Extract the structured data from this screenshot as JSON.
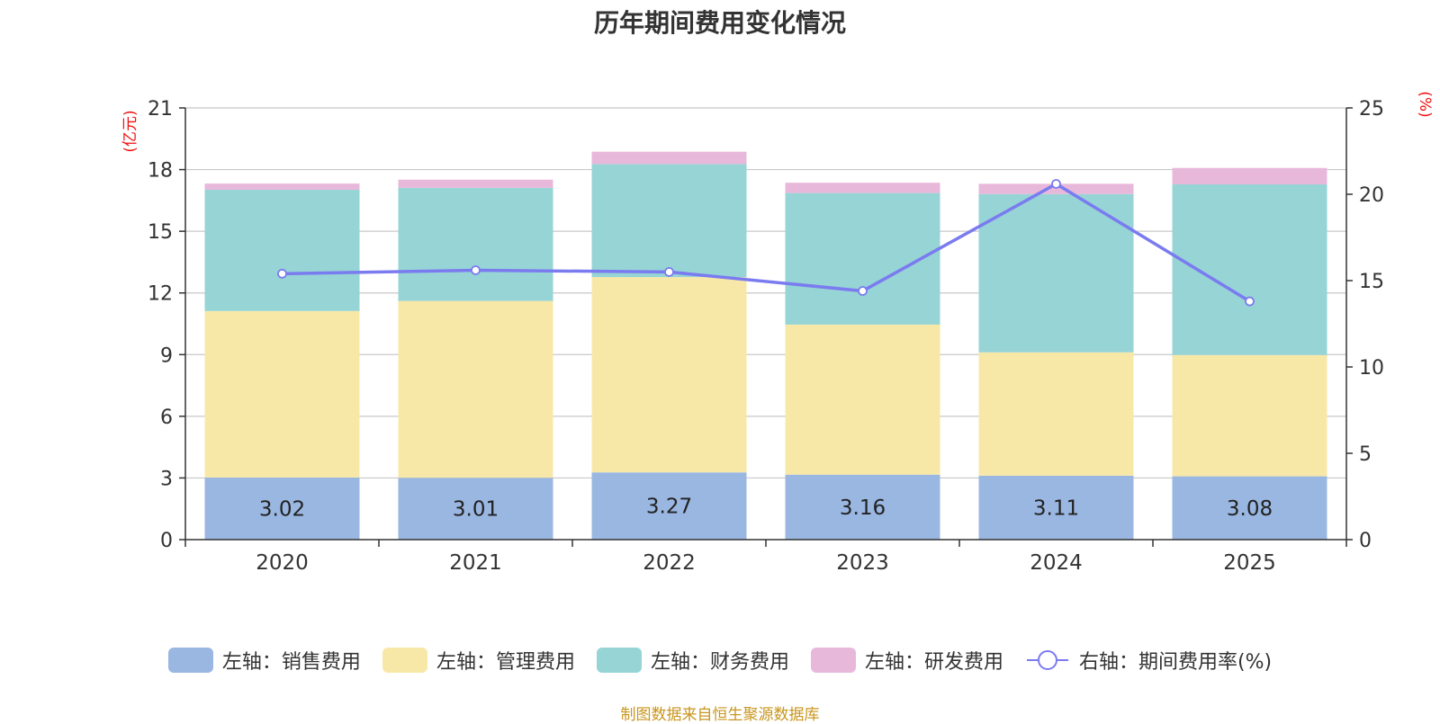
{
  "chart_data": {
    "type": "bar",
    "title": "历年期间费用变化情况",
    "categories": [
      "2020",
      "2021",
      "2022",
      "2023",
      "2024",
      "2025"
    ],
    "series": [
      {
        "name": "左轴：销售费用",
        "axis": "left",
        "color": "#9ab7e2",
        "values": [
          3.02,
          3.01,
          3.27,
          3.16,
          3.11,
          3.08
        ],
        "labels": [
          "3.02",
          "3.01",
          "3.27",
          "3.16",
          "3.11",
          "3.08"
        ]
      },
      {
        "name": "左轴：管理费用",
        "axis": "left",
        "color": "#f8e8a8",
        "values": [
          8.1,
          8.6,
          9.5,
          7.3,
          6.0,
          5.9
        ]
      },
      {
        "name": "左轴：财务费用",
        "axis": "left",
        "color": "#96d4d6",
        "values": [
          5.9,
          5.5,
          5.5,
          6.4,
          7.7,
          8.3
        ]
      },
      {
        "name": "左轴：研发费用",
        "axis": "left",
        "color": "#e8b8da",
        "values": [
          0.3,
          0.4,
          0.6,
          0.5,
          0.5,
          0.8
        ]
      },
      {
        "name": "右轴：期间费用率(%)",
        "axis": "right",
        "type": "line",
        "color": "#7b7bf0",
        "values": [
          15.4,
          15.6,
          15.5,
          14.4,
          20.6,
          13.8
        ]
      }
    ],
    "left_axis": {
      "unit": "(亿元)",
      "ylim": [
        0,
        21
      ],
      "ticks": [
        "0",
        "3",
        "6",
        "9",
        "12",
        "15",
        "18",
        "21"
      ]
    },
    "right_axis": {
      "unit": "(%)",
      "ylim": [
        0,
        25
      ],
      "ticks": [
        "0",
        "5",
        "10",
        "15",
        "20",
        "25"
      ]
    },
    "grid": true,
    "legend_position": "bottom"
  },
  "source": "制图数据来自恒生聚源数据库"
}
